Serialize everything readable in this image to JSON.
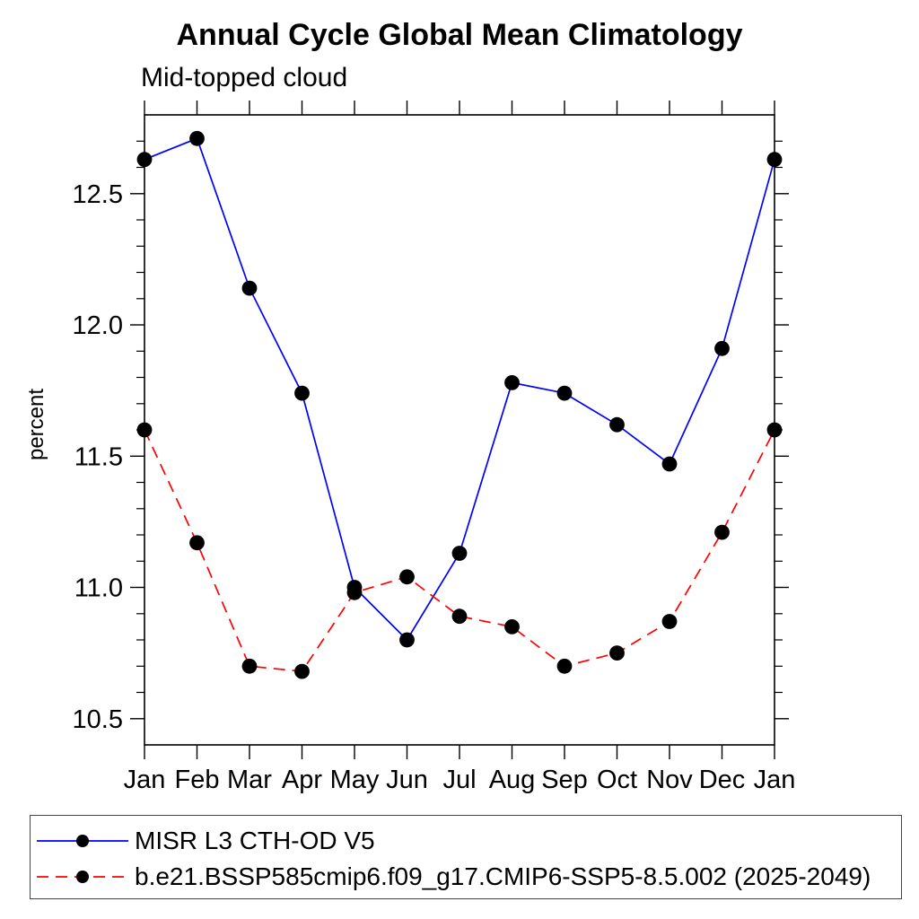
{
  "chart_data": {
    "type": "line",
    "title": "Annual Cycle Global Mean Climatology",
    "subtitle": "Mid-topped cloud",
    "ylabel": "percent",
    "xlabel": "",
    "categories": [
      "Jan",
      "Feb",
      "Mar",
      "Apr",
      "May",
      "Jun",
      "Jul",
      "Aug",
      "Sep",
      "Oct",
      "Nov",
      "Dec",
      "Jan"
    ],
    "ylim": [
      10.4,
      12.8
    ],
    "yticks_major": [
      10.5,
      11.0,
      11.5,
      12.0,
      12.5
    ],
    "ytick_labels": [
      "10.5",
      "11.0",
      "11.5",
      "12.0",
      "12.5"
    ],
    "ytick_minor_step": 0.1,
    "grid": false,
    "legend_position": "bottom",
    "colors": {
      "series1": "#0000ff",
      "series2": "#ff0000",
      "marker": "#000000",
      "axis": "#000000"
    },
    "series": [
      {
        "name": "MISR L3 CTH-OD V5",
        "color": "#0000ff",
        "line_style": "solid",
        "marker": "circle",
        "marker_color": "#000000",
        "values": [
          12.63,
          12.71,
          12.14,
          11.74,
          11.0,
          10.8,
          11.13,
          11.78,
          11.74,
          11.62,
          11.47,
          11.91,
          12.63
        ]
      },
      {
        "name": "b.e21.BSSP585cmip6.f09_g17.CMIP6-SSP5-8.5.002 (2025-2049)",
        "color": "#ff0000",
        "line_style": "dashed",
        "marker": "circle",
        "marker_color": "#000000",
        "values": [
          11.6,
          11.17,
          10.7,
          10.68,
          10.98,
          11.04,
          10.89,
          10.85,
          10.7,
          10.75,
          10.87,
          11.21,
          11.6
        ]
      }
    ]
  }
}
